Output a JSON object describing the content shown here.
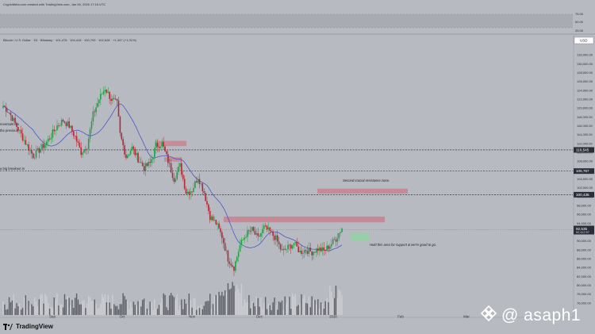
{
  "header": {
    "credit": "CryptoMeta.com created with TradingView.com, Jan 06, 2026 17:16 UTC",
    "symbol": "Bitcoin / U.S. Dollar · 1D · Bitstamp · 101,476 · 104,418 · 100,793 · 102,628 · +1,347 (+1.31%)"
  },
  "footer": {
    "brand": "TradingView",
    "watermark": "@ asaph1"
  },
  "colors": {
    "up": "#22a045",
    "down": "#b02a38",
    "zone": "#c97a86",
    "support": "#8fd49e",
    "ma": "#4b58c8",
    "price_tag": "#2a2e39"
  },
  "annotations": {
    "left_note_1": "reversals mo",
    "left_note_2": "the previous",
    "left_note_3": "a big breakout in",
    "resistance_zone": "Second crucial resistance zone.",
    "support_note": "Hold this area for support & we're good to go."
  },
  "chart_data": {
    "type": "candlestick",
    "rsi_axis": [
      "75.00",
      "50.00",
      "25.00"
    ],
    "x_ticks": [
      "Sep",
      "Oct",
      "Nov",
      "Dec",
      "2026",
      "Feb",
      "Mar"
    ],
    "y_ticks": [
      132000,
      130000,
      128000,
      126000,
      124000,
      122000,
      120000,
      118000,
      116000,
      114000,
      112000,
      110000,
      108000,
      106000,
      104000,
      102000,
      100000,
      98000,
      96000,
      94000,
      92000,
      90000,
      88000,
      86000,
      84000,
      82000,
      80000,
      78000,
      76000
    ],
    "ylim": [
      74000,
      134000
    ],
    "key_levels": [
      {
        "label": "110,545",
        "value": 110545
      },
      {
        "label": "105,767",
        "value": 105767
      },
      {
        "label": "100,436",
        "value": 100436
      }
    ],
    "last_price": {
      "label": "92,535",
      "value": 92535
    },
    "last_price_sub": "92,412.57",
    "resistance_zone": [
      94200,
      95500
    ],
    "upper_resistance_zone": [
      100700,
      101800
    ],
    "support_zone": [
      89900,
      91700
    ],
    "marker_usd": "USD",
    "anchor_closes": [
      [
        0,
        120500
      ],
      [
        4,
        119000
      ],
      [
        8,
        116500
      ],
      [
        12,
        114000
      ],
      [
        16,
        111500
      ],
      [
        20,
        109200
      ],
      [
        24,
        110500
      ],
      [
        28,
        111800
      ],
      [
        32,
        113800
      ],
      [
        36,
        116000
      ],
      [
        40,
        117200
      ],
      [
        44,
        116000
      ],
      [
        48,
        113500
      ],
      [
        52,
        110000
      ],
      [
        56,
        111500
      ],
      [
        60,
        118500
      ],
      [
        64,
        122000
      ],
      [
        68,
        124500
      ],
      [
        72,
        122000
      ],
      [
        76,
        121000
      ],
      [
        78,
        114000
      ],
      [
        82,
        109000
      ],
      [
        86,
        111000
      ],
      [
        90,
        108500
      ],
      [
        94,
        106500
      ],
      [
        98,
        107500
      ],
      [
        102,
        111500
      ],
      [
        106,
        112000
      ],
      [
        110,
        108000
      ],
      [
        114,
        104000
      ],
      [
        118,
        107000
      ],
      [
        122,
        101000
      ],
      [
        126,
        101500
      ],
      [
        130,
        104500
      ],
      [
        134,
        101000
      ],
      [
        138,
        95500
      ],
      [
        142,
        94000
      ],
      [
        146,
        91000
      ],
      [
        150,
        86000
      ],
      [
        154,
        84000
      ],
      [
        158,
        89000
      ],
      [
        162,
        91500
      ],
      [
        166,
        92500
      ],
      [
        170,
        90500
      ],
      [
        174,
        93000
      ],
      [
        178,
        92000
      ],
      [
        182,
        90500
      ],
      [
        186,
        87500
      ],
      [
        190,
        88500
      ],
      [
        194,
        89500
      ],
      [
        198,
        87500
      ],
      [
        202,
        88000
      ],
      [
        206,
        87500
      ],
      [
        210,
        88200
      ],
      [
        214,
        87800
      ],
      [
        218,
        89000
      ],
      [
        222,
        90500
      ],
      [
        226,
        93000
      ]
    ]
  }
}
